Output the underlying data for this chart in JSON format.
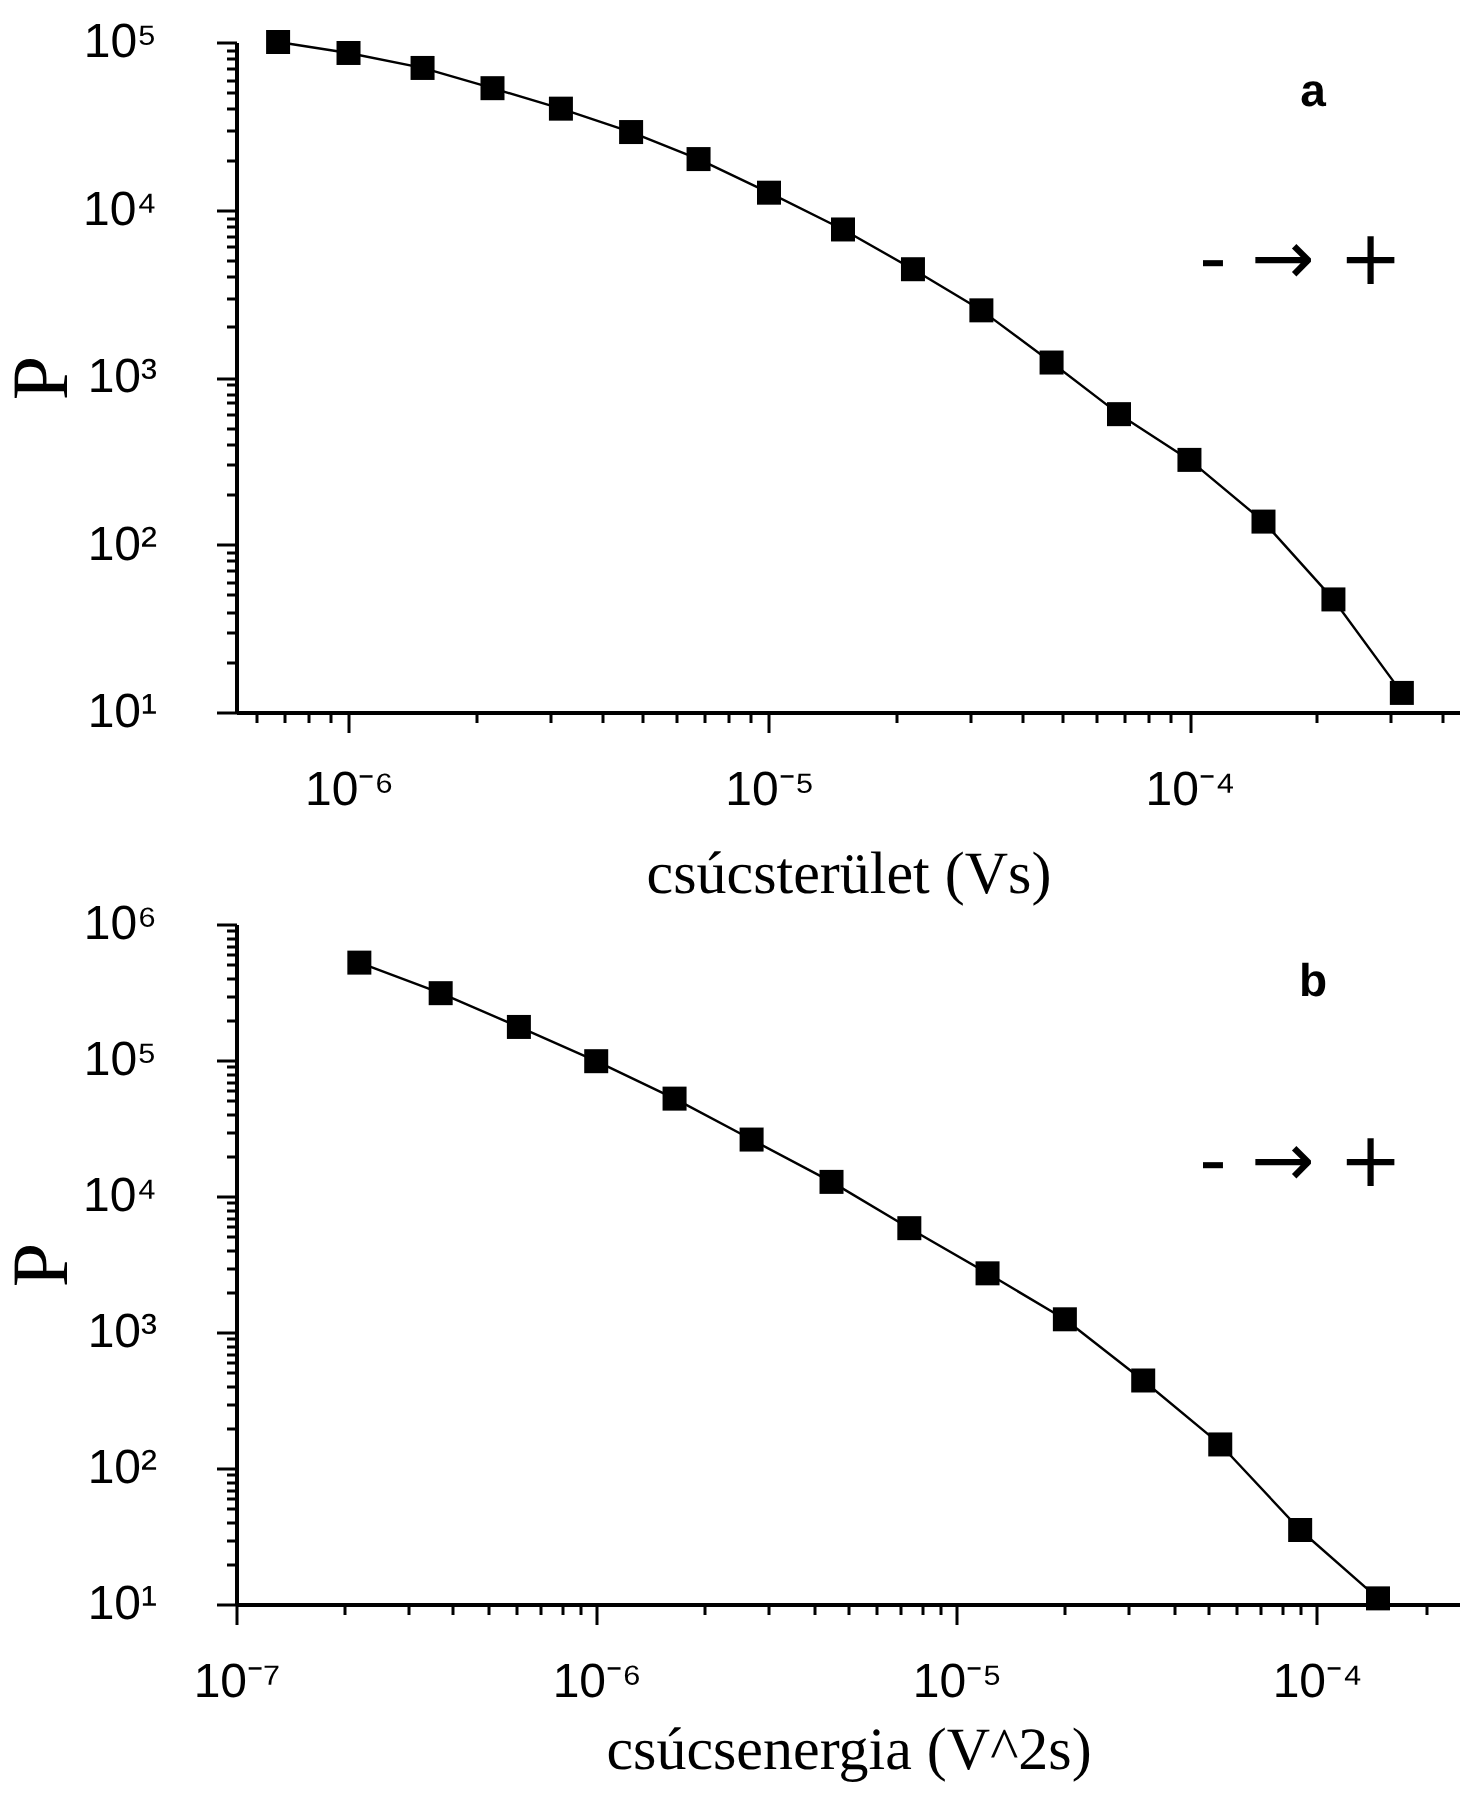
{
  "chart_data": [
    {
      "type": "line",
      "xlabel": "csúcsterület (Vs)",
      "ylabel": "P",
      "annotations": [
        "a",
        "- → +"
      ],
      "log": "xy",
      "marker": "square",
      "line_style": "solid",
      "x": [
        6.8e-07,
        1e-06,
        1.5e-06,
        2.2e-06,
        3.2e-06,
        4.7e-06,
        6.8e-06,
        1e-05,
        1.5e-05,
        2.2e-05,
        3.2e-05,
        4.7e-05,
        6.8e-05,
        0.0001,
        0.00015,
        0.00022,
        0.00032
      ],
      "series": [
        {
          "color": "#000000",
          "values": [
            100000,
            86000,
            70000,
            53000,
            40000,
            29000,
            20000,
            12600,
            7600,
            4400,
            2500,
            1220,
            600,
            320,
            137,
            47,
            13
          ]
        }
      ],
      "xlim": [
        5.4e-07,
        0.00044
      ],
      "ylim": [
        10,
        100000
      ],
      "xticks": [
        {
          "value": 6e-07,
          "label": null
        },
        {
          "value": 7e-07,
          "label": null
        },
        {
          "value": 8e-07,
          "label": null
        },
        {
          "value": 9e-07,
          "label": null
        },
        {
          "value": 1e-06,
          "label": "10⁻⁶"
        },
        {
          "value": 2e-06,
          "label": null
        },
        {
          "value": 3e-06,
          "label": null
        },
        {
          "value": 4e-06,
          "label": null
        },
        {
          "value": 5e-06,
          "label": null
        },
        {
          "value": 6e-06,
          "label": null
        },
        {
          "value": 7e-06,
          "label": null
        },
        {
          "value": 8e-06,
          "label": null
        },
        {
          "value": 9e-06,
          "label": null
        },
        {
          "value": 1e-05,
          "label": "10⁻⁵"
        },
        {
          "value": 2e-05,
          "label": null
        },
        {
          "value": 3e-05,
          "label": null
        },
        {
          "value": 4e-05,
          "label": null
        },
        {
          "value": 5e-05,
          "label": null
        },
        {
          "value": 6e-05,
          "label": null
        },
        {
          "value": 7e-05,
          "label": null
        },
        {
          "value": 8e-05,
          "label": null
        },
        {
          "value": 9e-05,
          "label": null
        },
        {
          "value": 0.0001,
          "label": "10⁻⁴"
        },
        {
          "value": 0.0002,
          "label": null
        },
        {
          "value": 0.0003,
          "label": null
        },
        {
          "value": 0.0004,
          "label": null
        }
      ],
      "yticks": [
        {
          "value": 10,
          "label": "10¹"
        },
        {
          "value": 20,
          "label": null
        },
        {
          "value": 30,
          "label": null
        },
        {
          "value": 40,
          "label": null
        },
        {
          "value": 50,
          "label": null
        },
        {
          "value": 60,
          "label": null
        },
        {
          "value": 70,
          "label": null
        },
        {
          "value": 80,
          "label": null
        },
        {
          "value": 90,
          "label": null
        },
        {
          "value": 100,
          "label": "10²"
        },
        {
          "value": 200,
          "label": null
        },
        {
          "value": 300,
          "label": null
        },
        {
          "value": 400,
          "label": null
        },
        {
          "value": 500,
          "label": null
        },
        {
          "value": 600,
          "label": null
        },
        {
          "value": 700,
          "label": null
        },
        {
          "value": 800,
          "label": null
        },
        {
          "value": 900,
          "label": null
        },
        {
          "value": 1000,
          "label": "10³"
        },
        {
          "value": 2000,
          "label": null
        },
        {
          "value": 3000,
          "label": null
        },
        {
          "value": 4000,
          "label": null
        },
        {
          "value": 5000,
          "label": null
        },
        {
          "value": 6000,
          "label": null
        },
        {
          "value": 7000,
          "label": null
        },
        {
          "value": 8000,
          "label": null
        },
        {
          "value": 9000,
          "label": null
        },
        {
          "value": 10000,
          "label": "10⁴"
        },
        {
          "value": 20000,
          "label": null
        },
        {
          "value": 30000,
          "label": null
        },
        {
          "value": 40000,
          "label": null
        },
        {
          "value": 50000,
          "label": null
        },
        {
          "value": 60000,
          "label": null
        },
        {
          "value": 70000,
          "label": null
        },
        {
          "value": 80000,
          "label": null
        },
        {
          "value": 90000,
          "label": null
        },
        {
          "value": 100000,
          "label": "10⁵"
        }
      ]
    },
    {
      "type": "line",
      "xlabel": "csúcsenergia (V^2s)",
      "ylabel": "P",
      "annotations": [
        "b",
        "- → +"
      ],
      "log": "xy",
      "marker": "square",
      "line_style": "solid",
      "x": [
        2.2e-07,
        3.7e-07,
        6.1e-07,
        1e-06,
        1.65e-06,
        2.7e-06,
        4.5e-06,
        7.4e-06,
        1.22e-05,
        2e-05,
        3.3e-05,
        5.4e-05,
        9e-05,
        0.000148
      ],
      "series": [
        {
          "color": "#000000",
          "values": [
            520000,
            310000,
            175000,
            98000,
            52000,
            26000,
            12700,
            5800,
            2700,
            1240,
            440,
            149,
            35,
            11
          ]
        }
      ],
      "xlim": [
        1e-07,
        0.00025
      ],
      "ylim": [
        10,
        1000000
      ],
      "xticks": [
        {
          "value": 1e-07,
          "label": "10⁻⁷"
        },
        {
          "value": 2e-07,
          "label": null
        },
        {
          "value": 3e-07,
          "label": null
        },
        {
          "value": 4e-07,
          "label": null
        },
        {
          "value": 5e-07,
          "label": null
        },
        {
          "value": 6e-07,
          "label": null
        },
        {
          "value": 7e-07,
          "label": null
        },
        {
          "value": 8e-07,
          "label": null
        },
        {
          "value": 9e-07,
          "label": null
        },
        {
          "value": 1e-06,
          "label": "10⁻⁶"
        },
        {
          "value": 2e-06,
          "label": null
        },
        {
          "value": 3e-06,
          "label": null
        },
        {
          "value": 4e-06,
          "label": null
        },
        {
          "value": 5e-06,
          "label": null
        },
        {
          "value": 6e-06,
          "label": null
        },
        {
          "value": 7e-06,
          "label": null
        },
        {
          "value": 8e-06,
          "label": null
        },
        {
          "value": 9e-06,
          "label": null
        },
        {
          "value": 1e-05,
          "label": "10⁻⁵"
        },
        {
          "value": 2e-05,
          "label": null
        },
        {
          "value": 3e-05,
          "label": null
        },
        {
          "value": 4e-05,
          "label": null
        },
        {
          "value": 5e-05,
          "label": null
        },
        {
          "value": 6e-05,
          "label": null
        },
        {
          "value": 7e-05,
          "label": null
        },
        {
          "value": 8e-05,
          "label": null
        },
        {
          "value": 9e-05,
          "label": null
        },
        {
          "value": 0.0001,
          "label": "10⁻⁴"
        },
        {
          "value": 0.0002,
          "label": null
        }
      ],
      "yticks": [
        {
          "value": 10,
          "label": "10¹"
        },
        {
          "value": 20,
          "label": null
        },
        {
          "value": 30,
          "label": null
        },
        {
          "value": 40,
          "label": null
        },
        {
          "value": 50,
          "label": null
        },
        {
          "value": 60,
          "label": null
        },
        {
          "value": 70,
          "label": null
        },
        {
          "value": 80,
          "label": null
        },
        {
          "value": 90,
          "label": null
        },
        {
          "value": 100,
          "label": "10²"
        },
        {
          "value": 200,
          "label": null
        },
        {
          "value": 300,
          "label": null
        },
        {
          "value": 400,
          "label": null
        },
        {
          "value": 500,
          "label": null
        },
        {
          "value": 600,
          "label": null
        },
        {
          "value": 700,
          "label": null
        },
        {
          "value": 800,
          "label": null
        },
        {
          "value": 900,
          "label": null
        },
        {
          "value": 1000,
          "label": "10³"
        },
        {
          "value": 2000,
          "label": null
        },
        {
          "value": 3000,
          "label": null
        },
        {
          "value": 4000,
          "label": null
        },
        {
          "value": 5000,
          "label": null
        },
        {
          "value": 6000,
          "label": null
        },
        {
          "value": 7000,
          "label": null
        },
        {
          "value": 8000,
          "label": null
        },
        {
          "value": 9000,
          "label": null
        },
        {
          "value": 10000,
          "label": "10⁴"
        },
        {
          "value": 20000,
          "label": null
        },
        {
          "value": 30000,
          "label": null
        },
        {
          "value": 40000,
          "label": null
        },
        {
          "value": 50000,
          "label": null
        },
        {
          "value": 60000,
          "label": null
        },
        {
          "value": 70000,
          "label": null
        },
        {
          "value": 80000,
          "label": null
        },
        {
          "value": 90000,
          "label": null
        },
        {
          "value": 100000,
          "label": "10⁵"
        },
        {
          "value": 200000,
          "label": null
        },
        {
          "value": 300000,
          "label": null
        },
        {
          "value": 400000,
          "label": null
        },
        {
          "value": 500000,
          "label": null
        },
        {
          "value": 600000,
          "label": null
        },
        {
          "value": 700000,
          "label": null
        },
        {
          "value": 800000,
          "label": null
        },
        {
          "value": 900000,
          "label": null
        },
        {
          "value": 1000000,
          "label": "10⁶"
        }
      ]
    }
  ]
}
